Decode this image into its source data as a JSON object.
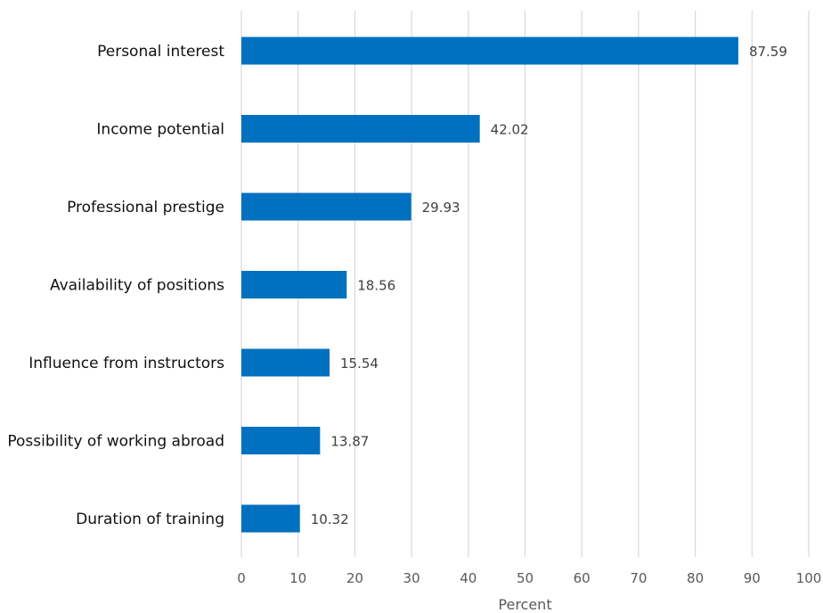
{
  "chart_data": {
    "type": "bar",
    "orientation": "horizontal",
    "categories": [
      "Personal interest",
      "Income potential",
      "Professional prestige",
      "Availability of positions",
      "Influence from instructors",
      "Possibility of working abroad",
      "Duration  of training"
    ],
    "values": [
      87.59,
      42.02,
      29.93,
      18.56,
      15.54,
      13.87,
      10.32
    ],
    "value_labels": [
      "87.59",
      "42.02",
      "29.93",
      "18.56",
      "15.54",
      "13.87",
      "10.32"
    ],
    "xlabel": "Percent",
    "xlim": [
      0,
      100
    ],
    "xticks": [
      0,
      10,
      20,
      30,
      40,
      50,
      60,
      70,
      80,
      90,
      100
    ],
    "xtick_labels": [
      "0",
      "10",
      "20",
      "30",
      "40",
      "50",
      "60",
      "70",
      "80",
      "90",
      "100"
    ],
    "grid": "vertical",
    "legend": "none",
    "colors": {
      "bar": "#0070C0",
      "grid": "#D9D9D9"
    }
  }
}
